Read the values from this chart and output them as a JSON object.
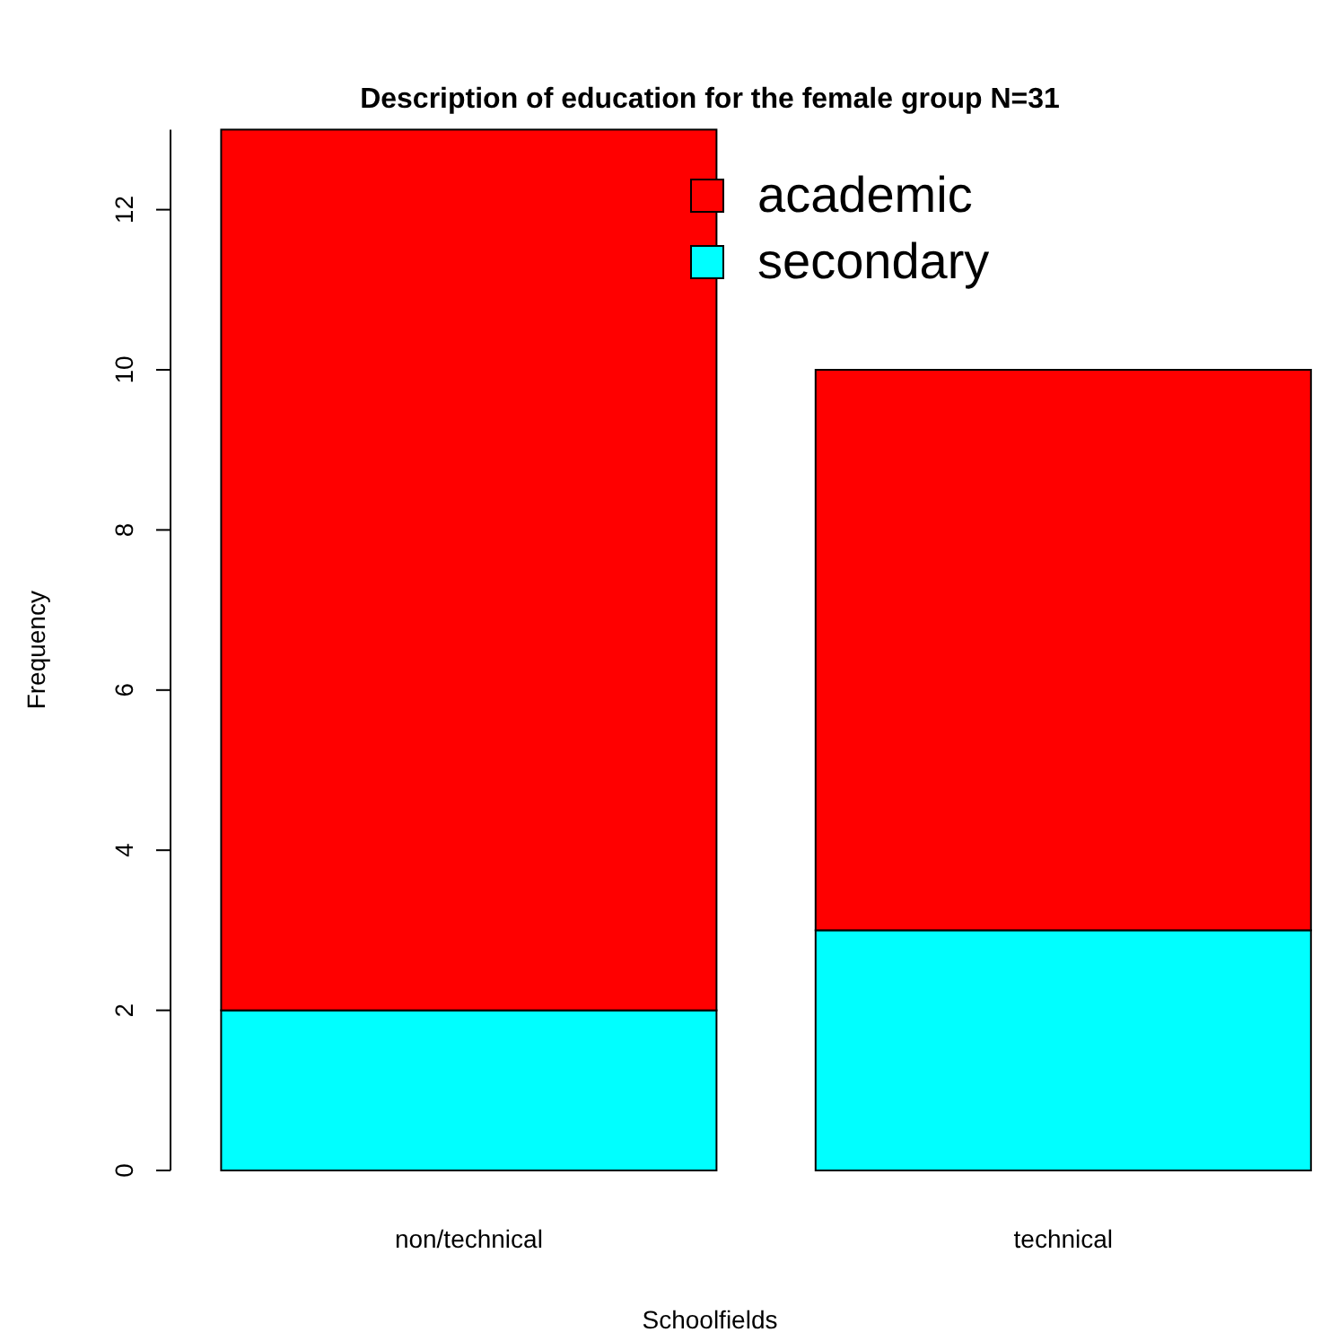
{
  "chart_data": {
    "type": "bar",
    "title": "Description of education for the female group N=31",
    "xlabel": "Schoolfields",
    "ylabel": "Frequency",
    "categories": [
      "non/technical",
      "technical"
    ],
    "stacked": true,
    "series": [
      {
        "name": "secondary",
        "color": "#00ffff",
        "values": [
          2,
          3
        ]
      },
      {
        "name": "academic",
        "color": "#ff0000",
        "values": [
          11,
          7
        ]
      }
    ],
    "ylim": [
      0,
      13
    ],
    "yticks": [
      0,
      2,
      4,
      6,
      8,
      10,
      12
    ],
    "legend": "top right",
    "grid": false
  }
}
